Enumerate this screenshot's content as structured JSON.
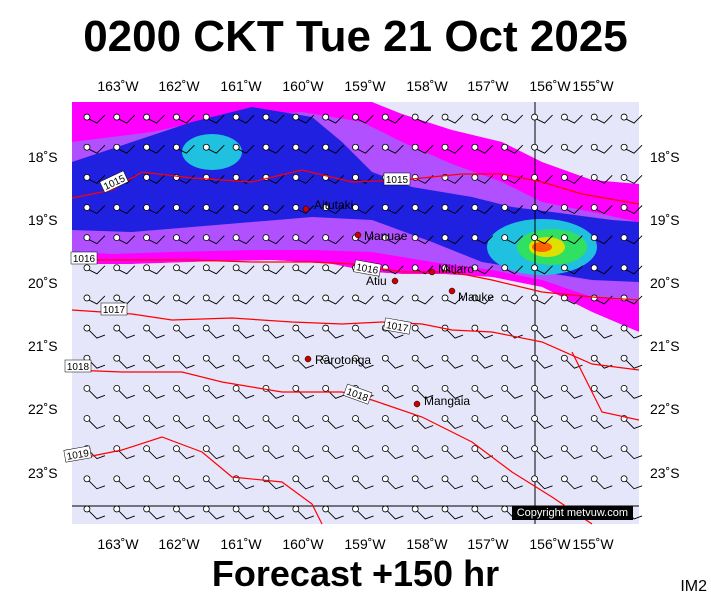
{
  "header": {
    "title": "0200 CKT Tue 21 Oct 2025"
  },
  "footer": {
    "forecast": "Forecast +150 hr",
    "code": "IM2"
  },
  "map": {
    "copyright": "Copyright metvuw.com",
    "lon_labels": [
      "163˚W",
      "162˚W",
      "161˚W",
      "160˚W",
      "159˚W",
      "158˚W",
      "157˚W",
      "156˚W",
      "155˚W"
    ],
    "lat_labels": [
      "18˚S",
      "19˚S",
      "20˚S",
      "21˚S",
      "22˚S",
      "23˚S"
    ],
    "isobars": [
      "1015",
      "1015",
      "1016",
      "1016",
      "1017",
      "1017",
      "1018",
      "1018",
      "1019"
    ],
    "places": [
      {
        "name": "Aitutaki"
      },
      {
        "name": "Manuae"
      },
      {
        "name": "Mitiaro"
      },
      {
        "name": "Atiu"
      },
      {
        "name": "Mauke"
      },
      {
        "name": "Rarotonga"
      },
      {
        "name": "Mangaia"
      }
    ],
    "colors": {
      "background": "#e6e6fa",
      "isobar": "#ff0000",
      "rain_magenta": "#ff00ff",
      "rain_purple": "#b050ff",
      "rain_blue": "#2020e0",
      "rain_cyan": "#20e0e0"
    }
  }
}
